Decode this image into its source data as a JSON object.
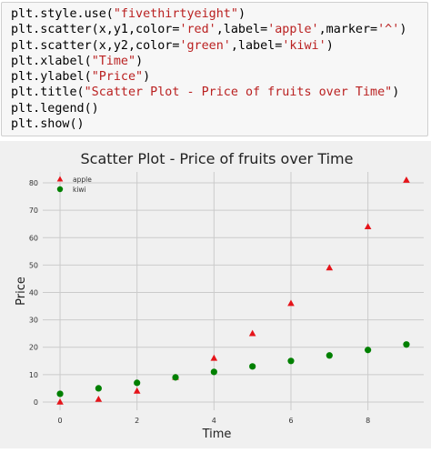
{
  "code_cell": {
    "lines": [
      [
        {
          "t": "plt.style.use(",
          "c": "p"
        },
        {
          "t": "\"fivethirtyeight\"",
          "c": "s"
        },
        {
          "t": ")",
          "c": "p"
        }
      ],
      [
        {
          "t": "plt.scatter(x,y1,color=",
          "c": "p"
        },
        {
          "t": "'red'",
          "c": "s"
        },
        {
          "t": ",label=",
          "c": "p"
        },
        {
          "t": "'apple'",
          "c": "s"
        },
        {
          "t": ",marker=",
          "c": "p"
        },
        {
          "t": "'^'",
          "c": "s"
        },
        {
          "t": ")",
          "c": "p"
        }
      ],
      [
        {
          "t": "plt.scatter(x,y2,color=",
          "c": "p"
        },
        {
          "t": "'green'",
          "c": "s"
        },
        {
          "t": ",label=",
          "c": "p"
        },
        {
          "t": "'kiwi'",
          "c": "s"
        },
        {
          "t": ")",
          "c": "p"
        }
      ],
      [
        {
          "t": "plt.xlabel(",
          "c": "p"
        },
        {
          "t": "\"Time\"",
          "c": "s"
        },
        {
          "t": ")",
          "c": "p"
        }
      ],
      [
        {
          "t": "plt.ylabel(",
          "c": "p"
        },
        {
          "t": "\"Price\"",
          "c": "s"
        },
        {
          "t": ")",
          "c": "p"
        }
      ],
      [
        {
          "t": "plt.title(",
          "c": "p"
        },
        {
          "t": "\"Scatter Plot - Price of fruits over Time\"",
          "c": "s"
        },
        {
          "t": ")",
          "c": "p"
        }
      ],
      [
        {
          "t": "plt.legend()",
          "c": "p"
        }
      ],
      [
        {
          "t": "plt.show()",
          "c": "p"
        }
      ]
    ]
  },
  "chart_data": {
    "type": "scatter",
    "title": "Scatter Plot - Price of fruits over Time",
    "xlabel": "Time",
    "ylabel": "Price",
    "xlim": [
      -0.45,
      9.45
    ],
    "ylim": [
      -3,
      84
    ],
    "xticks": [
      0,
      2,
      4,
      6,
      8
    ],
    "yticks": [
      0,
      10,
      20,
      30,
      40,
      50,
      60,
      70,
      80
    ],
    "grid": true,
    "legend_position": "top-left",
    "background": "#f0f0f0",
    "series": [
      {
        "name": "apple",
        "marker": "triangle",
        "color": "#e5141a",
        "x": [
          0,
          1,
          2,
          3,
          4,
          5,
          6,
          7,
          8,
          9
        ],
        "y": [
          0,
          1,
          4,
          9,
          16,
          25,
          36,
          49,
          64,
          81
        ]
      },
      {
        "name": "kiwi",
        "marker": "circle",
        "color": "#008000",
        "x": [
          0,
          1,
          2,
          3,
          4,
          5,
          6,
          7,
          8,
          9
        ],
        "y": [
          3,
          5,
          7,
          9,
          11,
          13,
          15,
          17,
          19,
          21
        ]
      }
    ]
  }
}
